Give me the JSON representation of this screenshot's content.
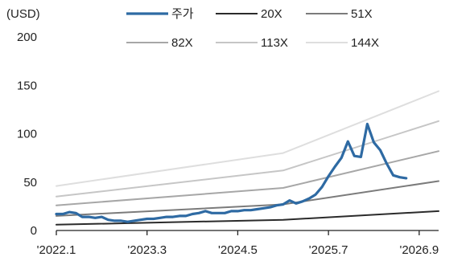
{
  "chart_data": {
    "type": "line",
    "unit_label": "(USD)",
    "ylim": [
      0,
      200
    ],
    "y_ticks": [
      0,
      50,
      100,
      150,
      200
    ],
    "x_range": [
      "2022-01-01",
      "2026-12-01"
    ],
    "x_ticks": [
      {
        "date": "2022-01-01",
        "label": "'2022.1"
      },
      {
        "date": "2023-03-01",
        "label": "'2023.3"
      },
      {
        "date": "2024-05-01",
        "label": "'2024.5"
      },
      {
        "date": "2025-07-01",
        "label": "'2025.7"
      },
      {
        "date": "2026-09-01",
        "label": "'2026.9"
      }
    ],
    "grid": false,
    "legend_position": "top",
    "series": [
      {
        "name": "주가",
        "color": "#2e6aa3",
        "width": 3.2,
        "points": [
          [
            "2022-01-01",
            17
          ],
          [
            "2022-02-01",
            17
          ],
          [
            "2022-03-01",
            19
          ],
          [
            "2022-04-01",
            18
          ],
          [
            "2022-05-01",
            14
          ],
          [
            "2022-06-01",
            14
          ],
          [
            "2022-07-01",
            13
          ],
          [
            "2022-08-01",
            14
          ],
          [
            "2022-09-01",
            11
          ],
          [
            "2022-10-01",
            10
          ],
          [
            "2022-11-01",
            10
          ],
          [
            "2022-12-01",
            9
          ],
          [
            "2023-01-01",
            10
          ],
          [
            "2023-02-01",
            11
          ],
          [
            "2023-03-01",
            12
          ],
          [
            "2023-04-01",
            12
          ],
          [
            "2023-05-01",
            13
          ],
          [
            "2023-06-01",
            14
          ],
          [
            "2023-07-01",
            14
          ],
          [
            "2023-08-01",
            15
          ],
          [
            "2023-09-01",
            15
          ],
          [
            "2023-10-01",
            17
          ],
          [
            "2023-11-01",
            18
          ],
          [
            "2023-12-01",
            20
          ],
          [
            "2024-01-01",
            18
          ],
          [
            "2024-02-01",
            18
          ],
          [
            "2024-03-01",
            18
          ],
          [
            "2024-04-01",
            20
          ],
          [
            "2024-05-01",
            20
          ],
          [
            "2024-06-01",
            21
          ],
          [
            "2024-07-01",
            21
          ],
          [
            "2024-08-01",
            22
          ],
          [
            "2024-09-01",
            23
          ],
          [
            "2024-10-01",
            24
          ],
          [
            "2024-11-01",
            26
          ],
          [
            "2024-12-01",
            27
          ],
          [
            "2025-01-01",
            31
          ],
          [
            "2025-02-01",
            28
          ],
          [
            "2025-03-01",
            30
          ],
          [
            "2025-04-01",
            33
          ],
          [
            "2025-05-01",
            37
          ],
          [
            "2025-06-01",
            45
          ],
          [
            "2025-07-01",
            56
          ],
          [
            "2025-08-01",
            66
          ],
          [
            "2025-09-01",
            75
          ],
          [
            "2025-10-01",
            92
          ],
          [
            "2025-11-01",
            77
          ],
          [
            "2025-12-01",
            76
          ],
          [
            "2026-01-01",
            110
          ],
          [
            "2026-02-01",
            91
          ],
          [
            "2026-03-01",
            83
          ],
          [
            "2026-04-01",
            69
          ],
          [
            "2026-05-01",
            57
          ],
          [
            "2026-06-01",
            55
          ],
          [
            "2026-07-01",
            54
          ]
        ]
      },
      {
        "name": "20X",
        "color": "#2b2b2b",
        "width": 2,
        "points": [
          [
            "2022-01-01",
            6
          ],
          [
            "2024-12-01",
            11
          ],
          [
            "2026-12-01",
            20
          ]
        ]
      },
      {
        "name": "51X",
        "color": "#7b7b7b",
        "width": 2,
        "points": [
          [
            "2022-01-01",
            15
          ],
          [
            "2024-12-01",
            27
          ],
          [
            "2026-12-01",
            51
          ]
        ]
      },
      {
        "name": "82X",
        "color": "#a7a7a7",
        "width": 2,
        "points": [
          [
            "2022-01-01",
            26
          ],
          [
            "2024-12-01",
            44
          ],
          [
            "2026-12-01",
            82
          ]
        ]
      },
      {
        "name": "113X",
        "color": "#c6c6c6",
        "width": 2,
        "points": [
          [
            "2022-01-01",
            35
          ],
          [
            "2024-12-01",
            62
          ],
          [
            "2026-12-01",
            113
          ]
        ]
      },
      {
        "name": "144X",
        "color": "#dedede",
        "width": 2,
        "points": [
          [
            "2022-01-01",
            46
          ],
          [
            "2024-12-01",
            80
          ],
          [
            "2026-12-01",
            144
          ]
        ]
      }
    ]
  }
}
